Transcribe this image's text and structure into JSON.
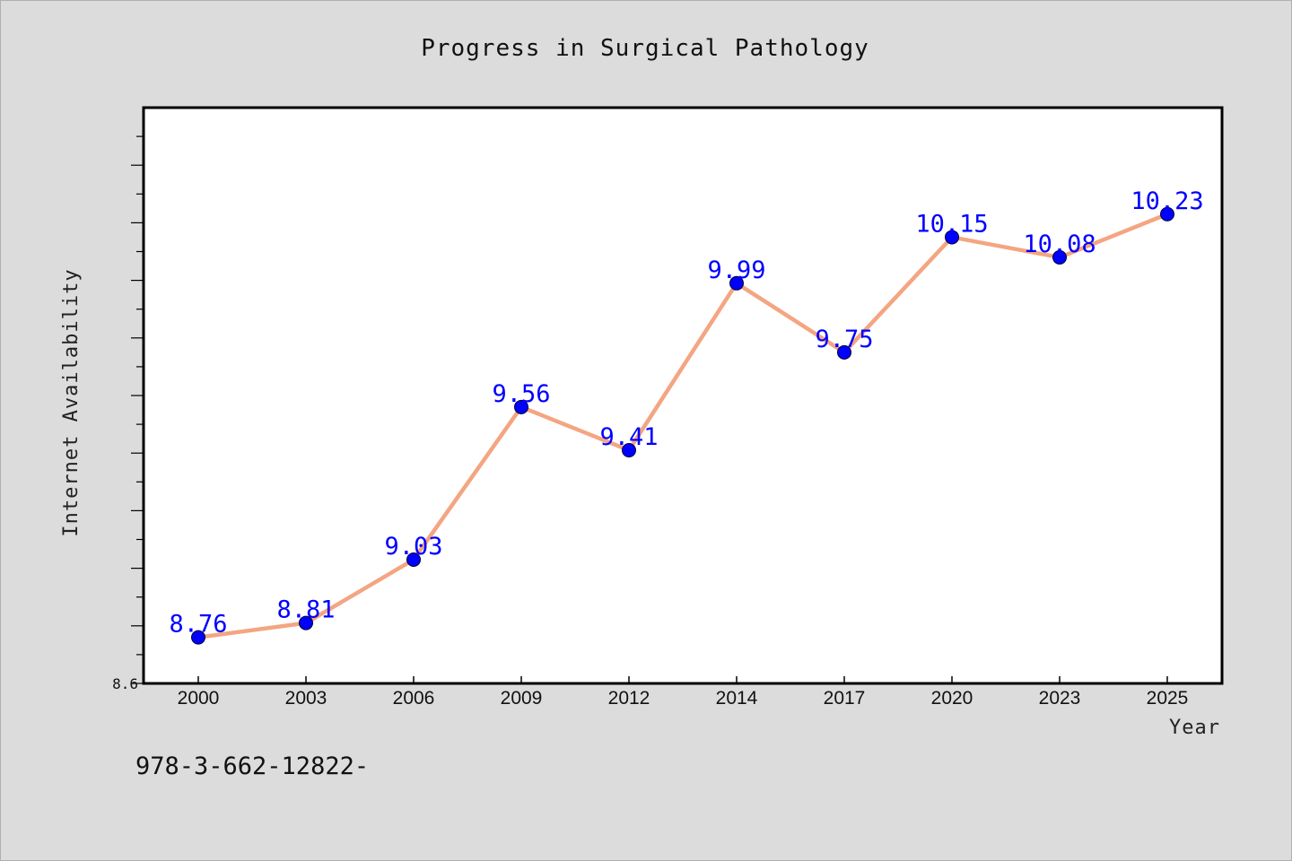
{
  "colors": {
    "background": "#dcdcdc",
    "plot_background": "#ffffff",
    "line": "#f4a582",
    "marker": "#0000ff",
    "label": "#0000ff"
  },
  "chart_data": {
    "type": "line",
    "title": "Progress in Surgical Pathology",
    "xlabel": "Year",
    "ylabel": "Internet Availability",
    "categories": [
      "2000",
      "2003",
      "2006",
      "2009",
      "2012",
      "2014",
      "2017",
      "2020",
      "2023",
      "2025"
    ],
    "series": [
      {
        "values": [
          8.76,
          8.81,
          9.03,
          9.56,
          9.41,
          9.99,
          9.75,
          10.15,
          10.08,
          10.23
        ]
      }
    ],
    "data_labels": [
      "8.76",
      "8.81",
      "9.03",
      "9.56",
      "9.41",
      "9.99",
      "9.75",
      "10.15",
      "10.08",
      "10.23"
    ],
    "ylim": [
      8.6,
      10.6
    ],
    "yticks_labeled": [
      "8.6"
    ],
    "grid": false,
    "legend": "none"
  },
  "footer_text": "978-3-662-12822-"
}
